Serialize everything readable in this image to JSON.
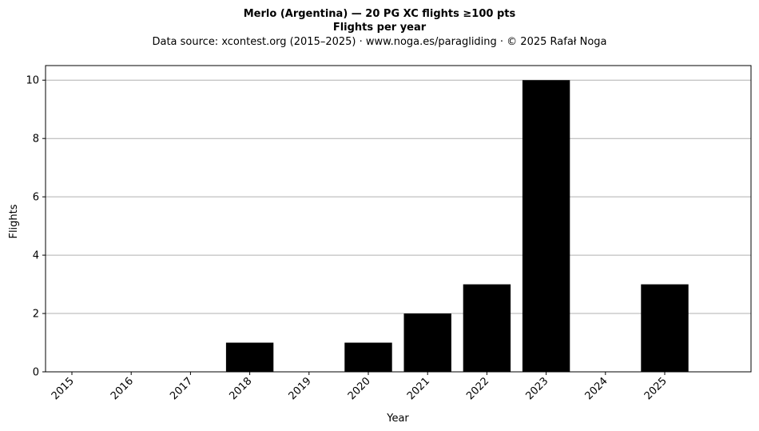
{
  "chart_data": {
    "type": "bar",
    "title": "Merlo (Argentina)  —  20 PG XC flights ≥100 pts",
    "subtitle": "Flights per year",
    "source": "Data source: xcontest.org (2015–2025)  ·  www.noga.es/paragliding  ·  © 2025 Rafał Noga",
    "xlabel": "Year",
    "ylabel": "Flights",
    "categories": [
      "2015",
      "2016",
      "2017",
      "2018",
      "2019",
      "2020",
      "2021",
      "2022",
      "2023",
      "2024",
      "2025"
    ],
    "values": [
      0,
      0,
      0,
      1,
      0,
      1,
      2,
      3,
      10,
      0,
      3
    ],
    "ylim": [
      0,
      10.5
    ],
    "yticks": [
      0,
      2,
      4,
      6,
      8,
      10
    ],
    "grid": "y",
    "bar_color": "#000000",
    "grid_color": "#b0b0b0"
  }
}
